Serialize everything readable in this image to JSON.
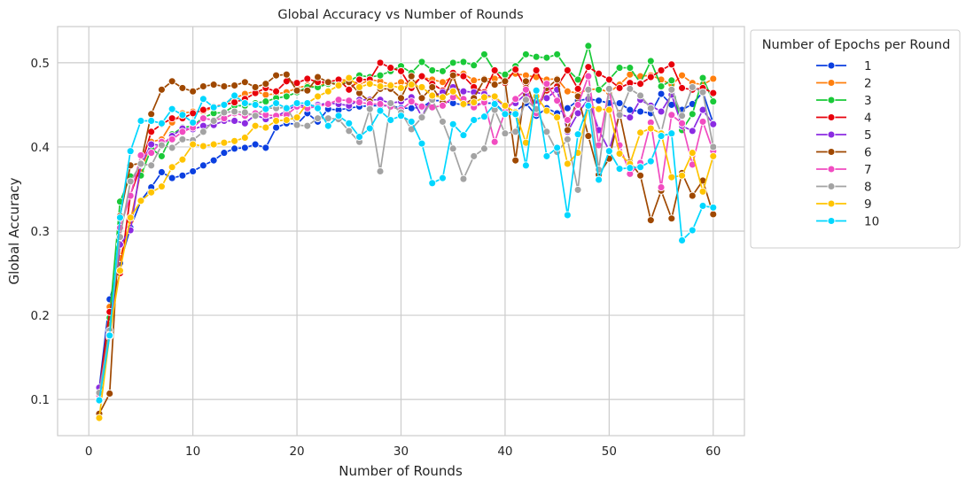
{
  "chart_data": {
    "type": "line",
    "title": "Global Accuracy vs Number of Rounds",
    "xlabel": "Number of Rounds",
    "ylabel": "Global Accuracy",
    "xlim": [
      -3,
      63
    ],
    "ylim": [
      0.057,
      0.543
    ],
    "xticks": [
      0,
      10,
      20,
      30,
      40,
      50,
      60
    ],
    "yticks": [
      0.1,
      0.2,
      0.3,
      0.4,
      0.5
    ],
    "grid": true,
    "legend": {
      "title": "Number of Epochs per Round",
      "placement": "outside-right-top"
    },
    "x": [
      1,
      2,
      3,
      4,
      5,
      6,
      7,
      8,
      9,
      10,
      11,
      12,
      13,
      14,
      15,
      16,
      17,
      18,
      19,
      20,
      21,
      22,
      23,
      24,
      25,
      26,
      27,
      28,
      29,
      30,
      31,
      32,
      33,
      34,
      35,
      36,
      37,
      38,
      39,
      40,
      41,
      42,
      43,
      44,
      45,
      46,
      47,
      48,
      49,
      50,
      51,
      52,
      53,
      54,
      55,
      56,
      57,
      58,
      59,
      60
    ],
    "series": [
      {
        "name": "1",
        "color": "#0b3fe0",
        "values": [
          0.113,
          0.219,
          0.262,
          0.304,
          0.336,
          0.352,
          0.37,
          0.363,
          0.366,
          0.371,
          0.378,
          0.384,
          0.393,
          0.398,
          0.399,
          0.403,
          0.399,
          0.423,
          0.428,
          0.427,
          0.44,
          0.43,
          0.445,
          0.444,
          0.446,
          0.448,
          0.449,
          0.449,
          0.449,
          0.446,
          0.446,
          0.447,
          0.455,
          0.455,
          0.452,
          0.45,
          0.45,
          0.452,
          0.452,
          0.44,
          0.442,
          0.452,
          0.437,
          0.446,
          0.44,
          0.446,
          0.455,
          0.457,
          0.455,
          0.452,
          0.452,
          0.444,
          0.442,
          0.44,
          0.463,
          0.45,
          0.444,
          0.451,
          0.465,
          0.428
        ]
      },
      {
        "name": "2",
        "color": "#ff7f0e",
        "values": [
          0.101,
          0.21,
          0.268,
          0.312,
          0.371,
          0.406,
          0.409,
          0.429,
          0.44,
          0.442,
          0.442,
          0.447,
          0.451,
          0.458,
          0.463,
          0.466,
          0.462,
          0.463,
          0.465,
          0.47,
          0.473,
          0.471,
          0.478,
          0.479,
          0.48,
          0.474,
          0.48,
          0.478,
          0.474,
          0.477,
          0.474,
          0.483,
          0.48,
          0.477,
          0.483,
          0.487,
          0.479,
          0.481,
          0.481,
          0.484,
          0.487,
          0.485,
          0.483,
          0.48,
          0.481,
          0.466,
          0.464,
          0.468,
          0.469,
          0.465,
          0.474,
          0.486,
          0.484,
          0.485,
          0.48,
          0.474,
          0.485,
          0.476,
          0.474,
          0.481
        ]
      },
      {
        "name": "3",
        "color": "#1ac938",
        "values": [
          0.107,
          0.197,
          0.335,
          0.365,
          0.366,
          0.398,
          0.389,
          0.415,
          0.423,
          0.425,
          0.435,
          0.44,
          0.441,
          0.449,
          0.449,
          0.452,
          0.454,
          0.458,
          0.46,
          0.465,
          0.471,
          0.471,
          0.475,
          0.476,
          0.478,
          0.485,
          0.483,
          0.485,
          0.49,
          0.496,
          0.488,
          0.501,
          0.491,
          0.49,
          0.5,
          0.501,
          0.497,
          0.51,
          0.49,
          0.486,
          0.496,
          0.51,
          0.507,
          0.506,
          0.51,
          0.492,
          0.48,
          0.52,
          0.468,
          0.48,
          0.494,
          0.494,
          0.476,
          0.502,
          0.472,
          0.479,
          0.42,
          0.439,
          0.482,
          0.454
        ]
      },
      {
        "name": "4",
        "color": "#e8000b",
        "values": [
          0.11,
          0.204,
          0.25,
          0.343,
          0.378,
          0.418,
          0.427,
          0.434,
          0.434,
          0.44,
          0.444,
          0.448,
          0.45,
          0.453,
          0.457,
          0.464,
          0.47,
          0.466,
          0.478,
          0.476,
          0.481,
          0.477,
          0.477,
          0.48,
          0.468,
          0.48,
          0.48,
          0.5,
          0.494,
          0.49,
          0.47,
          0.484,
          0.475,
          0.467,
          0.488,
          0.484,
          0.471,
          0.465,
          0.491,
          0.476,
          0.492,
          0.47,
          0.491,
          0.467,
          0.472,
          0.491,
          0.469,
          0.495,
          0.487,
          0.48,
          0.47,
          0.476,
          0.475,
          0.483,
          0.491,
          0.498,
          0.47,
          0.468,
          0.47,
          0.464
        ]
      },
      {
        "name": "5",
        "color": "#8b2be2",
        "values": [
          0.114,
          0.174,
          0.284,
          0.301,
          0.379,
          0.403,
          0.402,
          0.413,
          0.422,
          0.421,
          0.425,
          0.426,
          0.431,
          0.431,
          0.428,
          0.438,
          0.433,
          0.436,
          0.443,
          0.45,
          0.448,
          0.45,
          0.452,
          0.451,
          0.449,
          0.456,
          0.456,
          0.456,
          0.452,
          0.454,
          0.459,
          0.436,
          0.46,
          0.465,
          0.471,
          0.466,
          0.465,
          0.463,
          0.458,
          0.448,
          0.452,
          0.463,
          0.455,
          0.458,
          0.468,
          0.418,
          0.44,
          0.457,
          0.42,
          0.396,
          0.439,
          0.435,
          0.456,
          0.449,
          0.442,
          0.462,
          0.425,
          0.419,
          0.444,
          0.427
        ]
      },
      {
        "name": "6",
        "color": "#9f4800",
        "values": [
          0.083,
          0.107,
          0.318,
          0.378,
          0.381,
          0.439,
          0.468,
          0.478,
          0.47,
          0.466,
          0.472,
          0.474,
          0.472,
          0.473,
          0.477,
          0.471,
          0.475,
          0.485,
          0.486,
          0.467,
          0.467,
          0.483,
          0.477,
          0.473,
          0.477,
          0.464,
          0.454,
          0.469,
          0.469,
          0.458,
          0.484,
          0.458,
          0.471,
          0.453,
          0.485,
          0.45,
          0.458,
          0.48,
          0.474,
          0.478,
          0.384,
          0.478,
          0.442,
          0.47,
          0.48,
          0.42,
          0.46,
          0.413,
          0.367,
          0.386,
          0.44,
          0.382,
          0.366,
          0.313,
          0.348,
          0.315,
          0.369,
          0.342,
          0.36,
          0.32
        ]
      },
      {
        "name": "7",
        "color": "#f14cc1",
        "values": [
          0.105,
          0.175,
          0.304,
          0.342,
          0.39,
          0.393,
          0.406,
          0.409,
          0.418,
          0.423,
          0.434,
          0.432,
          0.434,
          0.44,
          0.437,
          0.44,
          0.438,
          0.437,
          0.438,
          0.448,
          0.446,
          0.448,
          0.451,
          0.456,
          0.455,
          0.453,
          0.451,
          0.451,
          0.448,
          0.444,
          0.454,
          0.448,
          0.447,
          0.449,
          0.459,
          0.457,
          0.447,
          0.453,
          0.406,
          0.442,
          0.457,
          0.468,
          0.44,
          0.475,
          0.455,
          0.432,
          0.45,
          0.484,
          0.402,
          0.468,
          0.402,
          0.368,
          0.381,
          0.429,
          0.352,
          0.438,
          0.428,
          0.379,
          0.43,
          0.395
        ]
      },
      {
        "name": "8",
        "color": "#a3a3a3",
        "values": [
          0.108,
          0.182,
          0.293,
          0.359,
          0.38,
          0.378,
          0.402,
          0.399,
          0.409,
          0.408,
          0.418,
          0.431,
          0.441,
          0.442,
          0.441,
          0.437,
          0.446,
          0.446,
          0.447,
          0.426,
          0.425,
          0.434,
          0.434,
          0.433,
          0.419,
          0.406,
          0.445,
          0.371,
          0.452,
          0.441,
          0.421,
          0.435,
          0.456,
          0.43,
          0.398,
          0.362,
          0.389,
          0.398,
          0.444,
          0.416,
          0.418,
          0.456,
          0.445,
          0.418,
          0.394,
          0.409,
          0.349,
          0.468,
          0.373,
          0.469,
          0.438,
          0.469,
          0.461,
          0.446,
          0.417,
          0.468,
          0.437,
          0.471,
          0.465,
          0.4
        ]
      },
      {
        "name": "9",
        "color": "#ffc400",
        "values": [
          0.078,
          0.177,
          0.253,
          0.316,
          0.336,
          0.346,
          0.353,
          0.376,
          0.385,
          0.403,
          0.401,
          0.403,
          0.405,
          0.407,
          0.411,
          0.425,
          0.423,
          0.431,
          0.432,
          0.435,
          0.452,
          0.46,
          0.466,
          0.473,
          0.482,
          0.471,
          0.475,
          0.472,
          0.473,
          0.47,
          0.474,
          0.471,
          0.461,
          0.459,
          0.466,
          0.451,
          0.453,
          0.459,
          0.46,
          0.449,
          0.441,
          0.405,
          0.46,
          0.443,
          0.435,
          0.38,
          0.393,
          0.449,
          0.445,
          0.444,
          0.392,
          0.38,
          0.417,
          0.422,
          0.416,
          0.364,
          0.366,
          0.393,
          0.347,
          0.389
        ]
      },
      {
        "name": "10",
        "color": "#00d7ff",
        "values": [
          0.099,
          0.176,
          0.316,
          0.395,
          0.431,
          0.431,
          0.428,
          0.445,
          0.438,
          0.429,
          0.457,
          0.447,
          0.45,
          0.461,
          0.452,
          0.45,
          0.445,
          0.452,
          0.446,
          0.452,
          0.452,
          0.446,
          0.425,
          0.437,
          0.428,
          0.412,
          0.422,
          0.443,
          0.432,
          0.437,
          0.43,
          0.404,
          0.357,
          0.363,
          0.427,
          0.414,
          0.432,
          0.436,
          0.451,
          0.439,
          0.439,
          0.378,
          0.467,
          0.389,
          0.399,
          0.319,
          0.415,
          0.449,
          0.361,
          0.395,
          0.374,
          0.375,
          0.376,
          0.383,
          0.413,
          0.416,
          0.289,
          0.301,
          0.33,
          0.328
        ]
      }
    ]
  }
}
